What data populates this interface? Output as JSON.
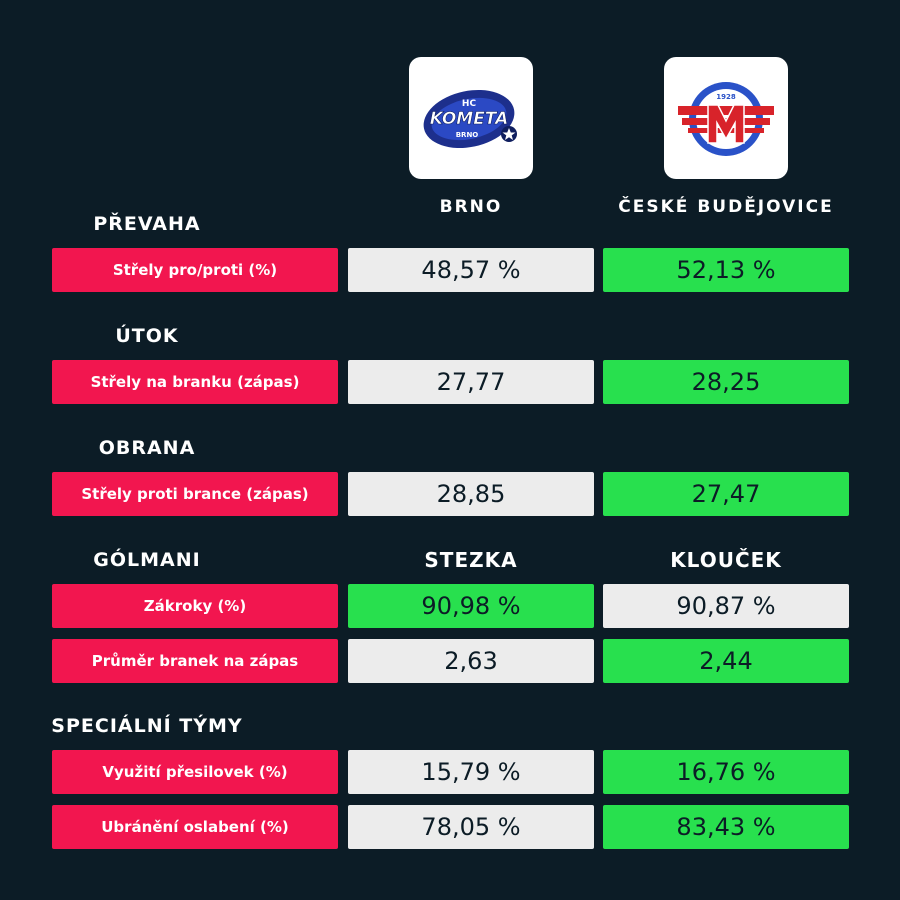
{
  "teams": {
    "home": {
      "name": "BRNO",
      "logo": "kometa-brno-logo",
      "logo_text": [
        "HC",
        "KOMETA",
        "BRNO"
      ]
    },
    "away": {
      "name": "ČESKÉ BUDĚJOVICE",
      "logo": "motor-ceske-budejovice-logo",
      "logo_text": [
        "1928",
        "M"
      ]
    }
  },
  "colors": {
    "background": "#0c1c26",
    "label": "#f2164f",
    "better": "#28e04e",
    "neutral": "#ececec"
  },
  "sections": {
    "prevaha": {
      "title": "PŘEVAHA",
      "rows": [
        {
          "label": "Střely pro/proti (%)",
          "home": "48,57 %",
          "away": "52,13 %",
          "better": "away"
        }
      ]
    },
    "utok": {
      "title": "ÚTOK",
      "rows": [
        {
          "label": "Střely na branku (zápas)",
          "home": "27,77",
          "away": "28,25",
          "better": "away"
        }
      ]
    },
    "obrana": {
      "title": "OBRANA",
      "rows": [
        {
          "label": "Střely proti brance (zápas)",
          "home": "28,85",
          "away": "27,47",
          "better": "away"
        }
      ]
    },
    "golmani": {
      "title": "GÓLMANI",
      "home_goalie": "STEZKA",
      "away_goalie": "KLOUČEK",
      "rows": [
        {
          "label": "Zákroky (%)",
          "home": "90,98 %",
          "away": "90,87 %",
          "better": "home"
        },
        {
          "label": "Průměr branek na zápas",
          "home": "2,63",
          "away": "2,44",
          "better": "away"
        }
      ]
    },
    "specialni": {
      "title": "SPECIÁLNÍ TÝMY",
      "rows": [
        {
          "label": "Využití přesilovek (%)",
          "home": "15,79 %",
          "away": "16,76 %",
          "better": "away"
        },
        {
          "label": "Ubránění oslabení (%)",
          "home": "78,05 %",
          "away": "83,43 %",
          "better": "away"
        }
      ]
    }
  }
}
